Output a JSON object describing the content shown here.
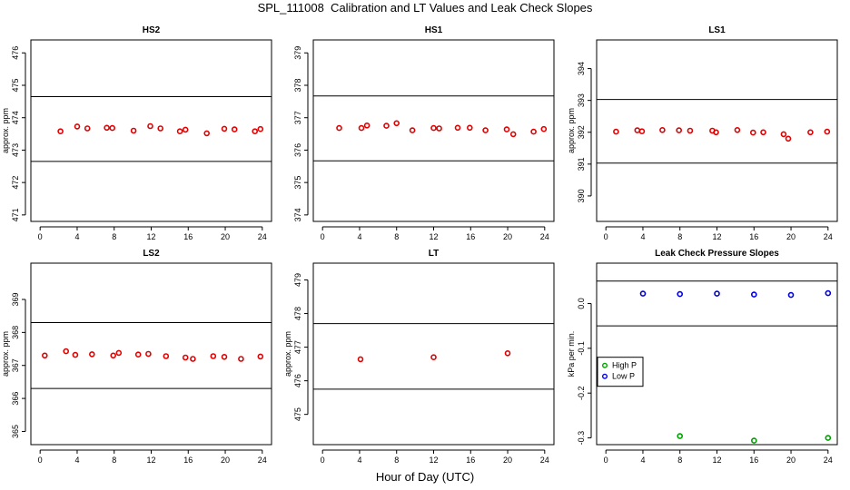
{
  "title": "SPL_111008  Calibration and LT Values and Leak Check Slopes",
  "xlabel": "Hour of Day (UTC)",
  "colors": {
    "series": "#e00000",
    "high_p": "#00a000",
    "low_p": "#0000dd",
    "axes": "#000000"
  },
  "chart_data": [
    {
      "type": "scatter",
      "title": "HS2",
      "ylabel": "approx. ppm",
      "xlim": [
        -1,
        25
      ],
      "ylim": [
        470.8,
        476.4
      ],
      "xticks": [
        0,
        4,
        8,
        12,
        16,
        20,
        24
      ],
      "yticks": [
        471,
        472,
        473,
        474,
        475,
        476
      ],
      "hlines": [
        472.65,
        474.65
      ],
      "series": [
        {
          "color": "#e00000",
          "x": [
            2.2,
            4.0,
            5.1,
            7.2,
            7.8,
            10.1,
            11.9,
            13.0,
            15.1,
            15.7,
            18.0,
            19.9,
            21.0,
            23.2,
            23.8
          ],
          "y": [
            473.58,
            473.73,
            473.67,
            473.69,
            473.68,
            473.6,
            473.74,
            473.67,
            473.58,
            473.63,
            473.52,
            473.66,
            473.64,
            473.58,
            473.65
          ]
        }
      ]
    },
    {
      "type": "scatter",
      "title": "HS1",
      "ylabel": "",
      "xlim": [
        -1,
        25
      ],
      "ylim": [
        373.8,
        379.4
      ],
      "xticks": [
        0,
        4,
        8,
        12,
        16,
        20,
        24
      ],
      "yticks": [
        374,
        375,
        376,
        377,
        378,
        379
      ],
      "hlines": [
        375.67,
        377.67
      ],
      "series": [
        {
          "color": "#e00000",
          "x": [
            1.8,
            4.2,
            4.8,
            6.9,
            8.0,
            9.7,
            12.0,
            12.6,
            14.6,
            15.9,
            17.6,
            19.9,
            20.6,
            22.8,
            23.9
          ],
          "y": [
            376.68,
            376.68,
            376.76,
            376.75,
            376.83,
            376.61,
            376.68,
            376.67,
            376.69,
            376.69,
            376.61,
            376.64,
            376.49,
            376.57,
            376.65
          ]
        }
      ]
    },
    {
      "type": "scatter",
      "title": "LS1",
      "ylabel": "approx. ppm",
      "xlim": [
        -1,
        25
      ],
      "ylim": [
        389.2,
        394.9
      ],
      "xticks": [
        0,
        4,
        8,
        12,
        16,
        20,
        24
      ],
      "yticks": [
        390,
        391,
        392,
        393,
        394
      ],
      "hlines": [
        391.03,
        393.03
      ],
      "series": [
        {
          "color": "#e00000",
          "x": [
            1.1,
            3.4,
            3.9,
            6.1,
            7.9,
            9.1,
            11.5,
            11.9,
            14.2,
            15.9,
            17.0,
            19.2,
            19.7,
            22.1,
            23.9
          ],
          "y": [
            392.02,
            392.06,
            392.03,
            392.07,
            392.06,
            392.05,
            392.05,
            392.0,
            392.07,
            391.99,
            392.0,
            391.94,
            391.8,
            392.0,
            392.02
          ]
        }
      ]
    },
    {
      "type": "scatter",
      "title": "LS2",
      "ylabel": "approx. ppm",
      "xlim": [
        -1,
        25
      ],
      "ylim": [
        364.6,
        370.1
      ],
      "xticks": [
        0,
        4,
        8,
        12,
        16,
        20,
        24
      ],
      "yticks": [
        365,
        366,
        367,
        368,
        369
      ],
      "hlines": [
        366.3,
        368.3
      ],
      "series": [
        {
          "color": "#e00000",
          "x": [
            0.5,
            2.8,
            3.8,
            5.6,
            7.9,
            8.5,
            10.6,
            11.7,
            13.6,
            15.7,
            16.5,
            18.7,
            19.9,
            21.7,
            23.8
          ],
          "y": [
            367.3,
            367.43,
            367.32,
            367.34,
            367.3,
            367.38,
            367.33,
            367.35,
            367.28,
            367.24,
            367.2,
            367.28,
            367.26,
            367.2,
            367.27
          ]
        }
      ]
    },
    {
      "type": "scatter",
      "title": "LT",
      "ylabel": "approx. ppm",
      "xlim": [
        -1,
        25
      ],
      "ylim": [
        474.1,
        479.5
      ],
      "xticks": [
        0,
        4,
        8,
        12,
        16,
        20,
        24
      ],
      "yticks": [
        475,
        476,
        477,
        478,
        479
      ],
      "hlines": [
        475.75,
        477.7
      ],
      "series": [
        {
          "color": "#e00000",
          "x": [
            4.1,
            12.0,
            20.0
          ],
          "y": [
            476.64,
            476.7,
            476.82
          ]
        }
      ]
    },
    {
      "type": "scatter",
      "title": "Leak Check Pressure Slopes",
      "ylabel": "kPa per min.",
      "xlim": [
        -1,
        25
      ],
      "ylim": [
        -0.315,
        0.09
      ],
      "xticks": [
        0,
        4,
        8,
        12,
        16,
        20,
        24
      ],
      "yticks": [
        -0.3,
        -0.2,
        -0.1,
        0.0
      ],
      "ytick_labels": [
        "-0.3",
        "-0.2",
        "-0.1",
        "0.0"
      ],
      "hlines": [
        -0.05,
        0.05
      ],
      "legend": {
        "position": "left",
        "entries": [
          "High P",
          "Low P"
        ]
      },
      "series": [
        {
          "name": "High P",
          "color": "#00a000",
          "x": [
            8.0,
            16.0,
            24.0
          ],
          "y": [
            -0.296,
            -0.306,
            -0.3
          ]
        },
        {
          "name": "Low P",
          "color": "#0000dd",
          "x": [
            4.0,
            8.0,
            12.0,
            16.0,
            20.0,
            24.0
          ],
          "y": [
            0.022,
            0.021,
            0.022,
            0.02,
            0.019,
            0.023
          ]
        }
      ]
    }
  ]
}
